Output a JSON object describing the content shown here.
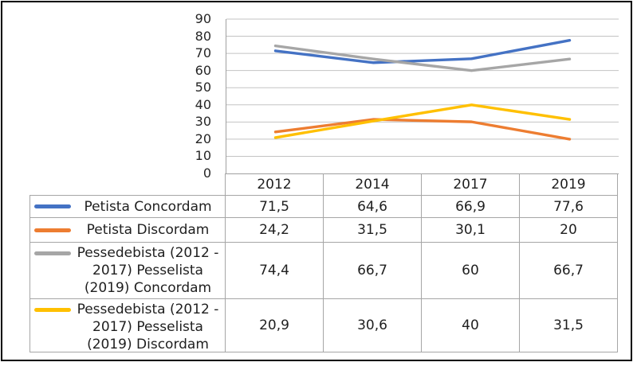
{
  "window": {
    "background": "#ffffff",
    "outer_border_color": "#000000"
  },
  "chart_data": {
    "type": "line",
    "title": "",
    "categories": [
      "2012",
      "2014",
      "2017",
      "2019"
    ],
    "series": [
      {
        "name": "Petista Concordam",
        "color": "#4472C4",
        "values": [
          71.5,
          64.6,
          66.9,
          77.6
        ],
        "display": [
          "71,5",
          "64,6",
          "66,9",
          "77,6"
        ]
      },
      {
        "name": "Petista Discordam",
        "color": "#ED7D31",
        "values": [
          24.2,
          31.5,
          30.1,
          20
        ],
        "display": [
          "24,2",
          "31,5",
          "30,1",
          "20"
        ]
      },
      {
        "name": "Pessedebista (2012 - 2017) Pesselista (2019) Concordam",
        "color": "#A6A6A6",
        "values": [
          74.4,
          66.7,
          60,
          66.7
        ],
        "display": [
          "74,4",
          "66,7",
          "60",
          "66,7"
        ]
      },
      {
        "name": "Pessedebista (2012 - 2017) Pesselista (2019) Discordam",
        "color": "#FFC000",
        "values": [
          20.9,
          30.6,
          40,
          31.5
        ],
        "display": [
          "20,9",
          "30,6",
          "40",
          "31,5"
        ]
      }
    ],
    "ylim": [
      0,
      90
    ],
    "ytick_step": 10,
    "yticks_top_to_bottom": [
      "90",
      "80",
      "70",
      "60",
      "50",
      "40",
      "30",
      "20",
      "10",
      "0"
    ],
    "grid": true,
    "gridline_color": "#c3c3c3",
    "axis_color": "#a0a0a0",
    "legend_position": "data-table-left",
    "decimal_separator": ","
  }
}
